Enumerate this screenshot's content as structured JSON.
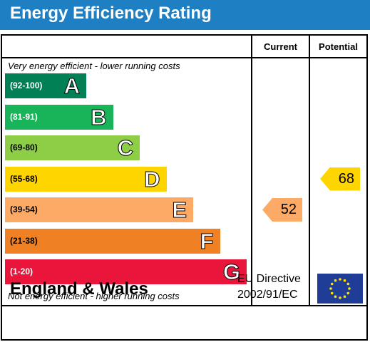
{
  "header": {
    "title": "Energy Efficiency Rating"
  },
  "columns": {
    "current": "Current",
    "potential": "Potential"
  },
  "notes": {
    "top": "Very energy efficient - lower running costs",
    "bottom": "Not energy efficient - higher running costs"
  },
  "bands": [
    {
      "range": "(92-100)",
      "letter": "A",
      "color": "#008054"
    },
    {
      "range": "(81-91)",
      "letter": "B",
      "color": "#19b459"
    },
    {
      "range": "(69-80)",
      "letter": "C",
      "color": "#8dce46"
    },
    {
      "range": "(55-68)",
      "letter": "D",
      "color": "#ffd500"
    },
    {
      "range": "(39-54)",
      "letter": "E",
      "color": "#fcaa65"
    },
    {
      "range": "(21-38)",
      "letter": "F",
      "color": "#ef8023"
    },
    {
      "range": "(1-20)",
      "letter": "G",
      "color": "#e9153b"
    }
  ],
  "ratings": {
    "current": {
      "value": "52",
      "band": "E",
      "color": "#fcaa65"
    },
    "potential": {
      "value": "68",
      "band": "D",
      "color": "#ffd500"
    }
  },
  "footer": {
    "country": "England & Wales",
    "directive_line1": "EU Directive",
    "directive_line2": "2002/91/EC"
  }
}
